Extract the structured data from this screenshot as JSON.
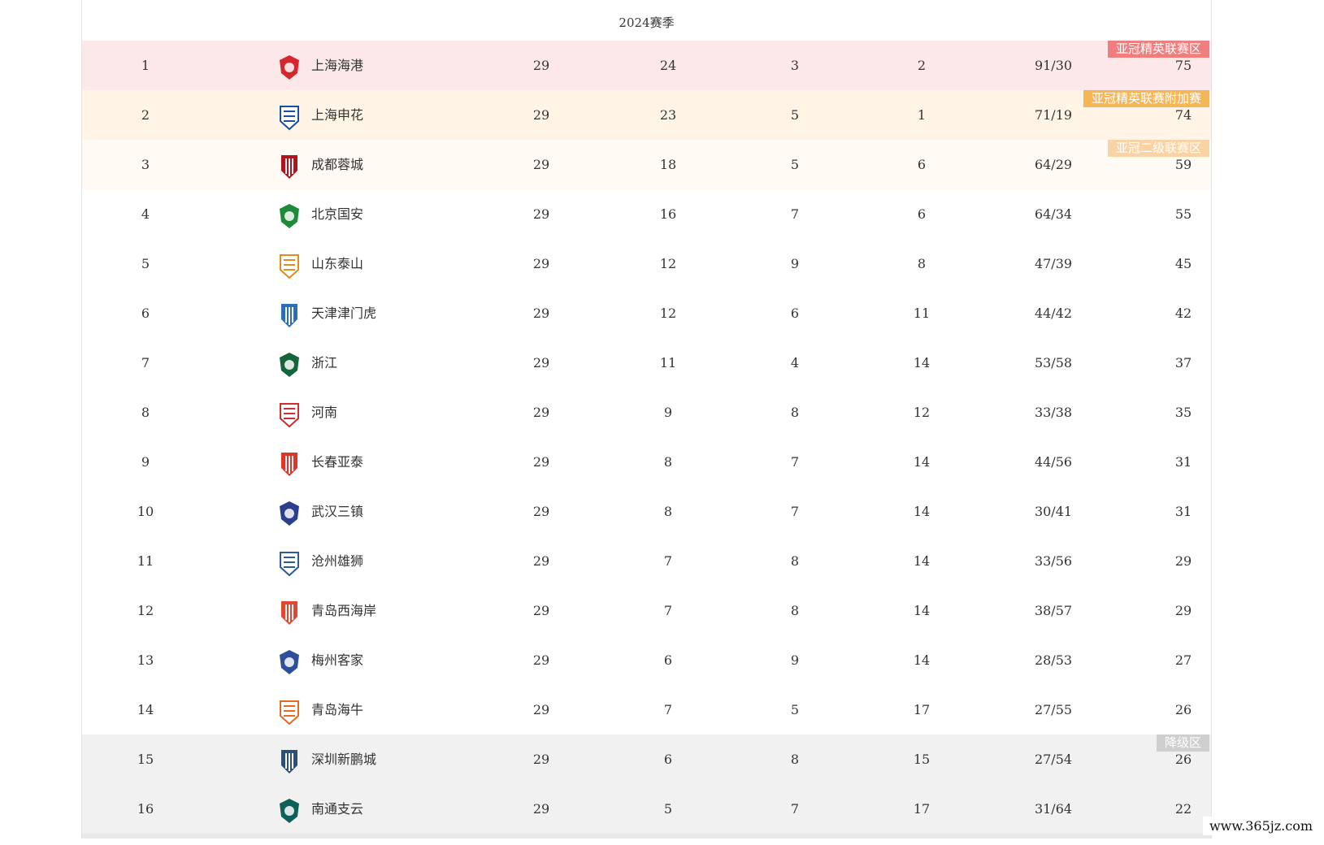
{
  "season_title": "2024赛季",
  "colors": {
    "acl_zone_bg": "#fce8e8",
    "acl_badge": "#ef7f7f",
    "playoff_zone_bg": "#fff4e6",
    "playoff_badge": "#f7b654",
    "acl2_zone_bg": "#fffaf3",
    "acl2_badge": "#f9d3a3",
    "relegation_zone_bg": "#f1f1f1",
    "relegation_badge": "#cfcfcf"
  },
  "rows": [
    {
      "rank": "1",
      "team": "上海海港",
      "played": "29",
      "win": "24",
      "draw": "3",
      "loss": "2",
      "goals": "91/30",
      "pts": "75",
      "zone": "acl",
      "badge": "亚冠精英联赛区",
      "logo": "shanghai-port-logo",
      "logo_color": "#d7262b"
    },
    {
      "rank": "2",
      "team": "上海申花",
      "played": "29",
      "win": "23",
      "draw": "5",
      "loss": "1",
      "goals": "71/19",
      "pts": "74",
      "zone": "playoff",
      "badge": "亚冠精英联赛附加赛",
      "logo": "shanghai-shenhua-logo",
      "logo_color": "#1b4fa0"
    },
    {
      "rank": "3",
      "team": "成都蓉城",
      "played": "29",
      "win": "18",
      "draw": "5",
      "loss": "6",
      "goals": "64/29",
      "pts": "59",
      "zone": "acl2",
      "badge": "亚冠二级联赛区",
      "logo": "chengdu-rongcheng-logo",
      "logo_color": "#b3121a"
    },
    {
      "rank": "4",
      "team": "北京国安",
      "played": "29",
      "win": "16",
      "draw": "7",
      "loss": "6",
      "goals": "64/34",
      "pts": "55",
      "zone": "",
      "badge": "",
      "logo": "beijing-guoan-logo",
      "logo_color": "#1f8a3a"
    },
    {
      "rank": "5",
      "team": "山东泰山",
      "played": "29",
      "win": "12",
      "draw": "9",
      "loss": "8",
      "goals": "47/39",
      "pts": "45",
      "zone": "",
      "badge": "",
      "logo": "shandong-taishan-logo",
      "logo_color": "#e58a1f"
    },
    {
      "rank": "6",
      "team": "天津津门虎",
      "played": "29",
      "win": "12",
      "draw": "6",
      "loss": "11",
      "goals": "44/42",
      "pts": "42",
      "zone": "",
      "badge": "",
      "logo": "tianjin-jinmen-tiger-logo",
      "logo_color": "#2a6fb8"
    },
    {
      "rank": "7",
      "team": "浙江",
      "played": "29",
      "win": "11",
      "draw": "4",
      "loss": "14",
      "goals": "53/58",
      "pts": "37",
      "zone": "",
      "badge": "",
      "logo": "zhejiang-logo",
      "logo_color": "#16643a"
    },
    {
      "rank": "8",
      "team": "河南",
      "played": "29",
      "win": "9",
      "draw": "8",
      "loss": "12",
      "goals": "33/38",
      "pts": "35",
      "zone": "",
      "badge": "",
      "logo": "henan-logo",
      "logo_color": "#d12d2d"
    },
    {
      "rank": "9",
      "team": "长春亚泰",
      "played": "29",
      "win": "8",
      "draw": "7",
      "loss": "14",
      "goals": "44/56",
      "pts": "31",
      "zone": "",
      "badge": "",
      "logo": "changchun-yatai-logo",
      "logo_color": "#e0352b"
    },
    {
      "rank": "10",
      "team": "武汉三镇",
      "played": "29",
      "win": "8",
      "draw": "7",
      "loss": "14",
      "goals": "30/41",
      "pts": "31",
      "zone": "",
      "badge": "",
      "logo": "wuhan-three-towns-logo",
      "logo_color": "#2b3f8f"
    },
    {
      "rank": "11",
      "team": "沧州雄狮",
      "played": "29",
      "win": "7",
      "draw": "8",
      "loss": "14",
      "goals": "33/56",
      "pts": "29",
      "zone": "",
      "badge": "",
      "logo": "cangzhou-lions-logo",
      "logo_color": "#2c5aa0"
    },
    {
      "rank": "12",
      "team": "青岛西海岸",
      "played": "29",
      "win": "7",
      "draw": "8",
      "loss": "14",
      "goals": "38/57",
      "pts": "29",
      "zone": "",
      "badge": "",
      "logo": "qingdao-west-coast-logo",
      "logo_color": "#e2472f"
    },
    {
      "rank": "13",
      "team": "梅州客家",
      "played": "29",
      "win": "6",
      "draw": "9",
      "loss": "14",
      "goals": "28/53",
      "pts": "27",
      "zone": "",
      "badge": "",
      "logo": "meizhou-hakka-logo",
      "logo_color": "#2e4f9c"
    },
    {
      "rank": "14",
      "team": "青岛海牛",
      "played": "29",
      "win": "7",
      "draw": "5",
      "loss": "17",
      "goals": "27/55",
      "pts": "26",
      "zone": "",
      "badge": "",
      "logo": "qingdao-hainiu-logo",
      "logo_color": "#e46b22"
    },
    {
      "rank": "15",
      "team": "深圳新鹏城",
      "played": "29",
      "win": "6",
      "draw": "8",
      "loss": "15",
      "goals": "27/54",
      "pts": "26",
      "zone": "rel",
      "badge": "降级区",
      "logo": "shenzhen-peng-city-logo",
      "logo_color": "#2c4f7a"
    },
    {
      "rank": "16",
      "team": "南通支云",
      "played": "29",
      "win": "5",
      "draw": "7",
      "loss": "17",
      "goals": "31/64",
      "pts": "22",
      "zone": "rel",
      "badge": "",
      "logo": "nantong-zhiyun-logo",
      "logo_color": "#0f5f5a"
    }
  ],
  "watermark": "www.365jz.com"
}
